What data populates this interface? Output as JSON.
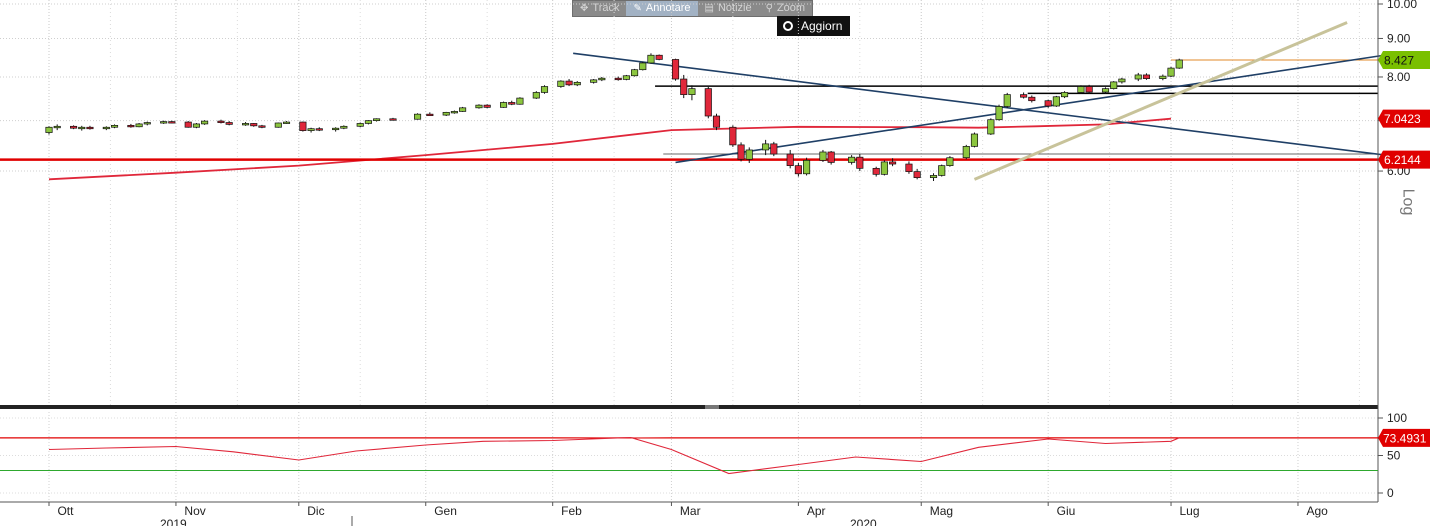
{
  "toolbar": {
    "buttons": [
      {
        "label": "Track",
        "icon": "crosshair-icon",
        "glyph": "✥"
      },
      {
        "label": "Annotare",
        "icon": "pencil-icon",
        "glyph": "✎"
      },
      {
        "label": "Notizie",
        "icon": "news-icon",
        "glyph": "▤"
      },
      {
        "label": "Zoom",
        "icon": "magnifier-icon",
        "glyph": "⚲"
      }
    ],
    "active_index": 1,
    "update_label": "Aggiorn"
  },
  "log_label": "Log",
  "colors": {
    "up": "#8cc63f",
    "down": "#e0273a",
    "moving_average": "#e0273a",
    "support_line": "#e00000",
    "trend_blue": "#1f3f66",
    "trend_tan": "#c8c39a",
    "flat_black": "#000000",
    "last_price_marker": "#7ac000",
    "indicator_line": "#e0273a",
    "indicator_fill": "#f5b2b8",
    "overbought_line": "#e00000",
    "oversold_line": "#2ea82e"
  },
  "chart_data": [
    {
      "type": "candlestick",
      "title": "",
      "yscale": "log",
      "ylim": [
        5.8,
        10.0
      ],
      "yticks": [
        "10.00",
        "9.00",
        "8.00",
        "7.00",
        "6.00"
      ],
      "xticks": [
        "Ott",
        "Nov",
        "Dic",
        "Gen",
        "Feb",
        "Mar",
        "Apr",
        "Mag",
        "Giu",
        "Lug",
        "Ago"
      ],
      "year_labels": [
        "2019",
        "2020"
      ],
      "price_labels": [
        {
          "value": 8.427,
          "text": "8.427",
          "style": "last"
        },
        {
          "value": 7.0423,
          "text": "7.0423",
          "style": "ma"
        },
        {
          "value": 6.2144,
          "text": "6.2144",
          "style": "support"
        }
      ],
      "horizontal_levels": [
        {
          "value": 6.2144,
          "from": "Ott",
          "to": "end",
          "style": "support"
        },
        {
          "value": 7.78,
          "from": "Feb 26",
          "to": "end",
          "style": "black"
        },
        {
          "value": 7.61,
          "from": "May 27",
          "to": "end",
          "style": "black"
        },
        {
          "value": 6.32,
          "from": "Feb 28",
          "to": "end",
          "style": "grey"
        },
        {
          "value": 8.427,
          "from": "Jul 1",
          "to": "end",
          "style": "last"
        }
      ],
      "trend_lines": [
        {
          "from": [
            "Feb 6",
            8.6
          ],
          "to": [
            "Aug 31",
            6.2144
          ],
          "style": "blue"
        },
        {
          "from": [
            "Mar 2",
            6.16
          ],
          "to": [
            "Aug 22",
            8.55
          ],
          "style": "blue"
        },
        {
          "from": [
            "May 14",
            5.85
          ],
          "to": [
            "Aug 13",
            9.45
          ],
          "style": "tan"
        }
      ],
      "moving_average": [
        [
          "Oct 1",
          5.85
        ],
        [
          "Nov 1",
          5.97
        ],
        [
          "Dec 1",
          6.1
        ],
        [
          "Jan 1",
          6.3
        ],
        [
          "Feb 1",
          6.52
        ],
        [
          "Mar 1",
          6.8
        ],
        [
          "Apr 1",
          6.87
        ],
        [
          "May 1",
          6.86
        ],
        [
          "May 15",
          6.85
        ],
        [
          "May 29",
          6.88
        ],
        [
          "Jun 15",
          6.92
        ],
        [
          "Jul 1",
          7.0423
        ]
      ],
      "candles": [
        [
          "Oct 1",
          6.75,
          6.88,
          6.71,
          6.86
        ],
        [
          "Oct 3",
          6.86,
          6.92,
          6.8,
          6.88
        ],
        [
          "Oct 7",
          6.88,
          6.9,
          6.82,
          6.84
        ],
        [
          "Oct 9",
          6.84,
          6.89,
          6.79,
          6.86
        ],
        [
          "Oct 11",
          6.86,
          6.89,
          6.81,
          6.83
        ],
        [
          "Oct 15",
          6.83,
          6.88,
          6.8,
          6.86
        ],
        [
          "Oct 17",
          6.86,
          6.92,
          6.84,
          6.9
        ],
        [
          "Oct 21",
          6.9,
          6.93,
          6.85,
          6.87
        ],
        [
          "Oct 23",
          6.87,
          6.95,
          6.86,
          6.93
        ],
        [
          "Oct 25",
          6.93,
          6.98,
          6.9,
          6.96
        ],
        [
          "Oct 29",
          6.96,
          7.0,
          6.93,
          6.98
        ],
        [
          "Oct 31",
          6.98,
          7.0,
          6.94,
          6.97
        ],
        [
          "Nov 4",
          6.97,
          6.99,
          6.85,
          6.86
        ],
        [
          "Nov 6",
          6.86,
          6.95,
          6.84,
          6.93
        ],
        [
          "Nov 8",
          6.93,
          7.01,
          6.91,
          6.99
        ],
        [
          "Nov 12",
          6.99,
          7.02,
          6.94,
          6.96
        ],
        [
          "Nov 14",
          6.96,
          6.99,
          6.9,
          6.92
        ],
        [
          "Nov 18",
          6.92,
          6.97,
          6.89,
          6.94
        ],
        [
          "Nov 20",
          6.94,
          6.95,
          6.87,
          6.89
        ],
        [
          "Nov 22",
          6.89,
          6.91,
          6.84,
          6.86
        ],
        [
          "Nov 26",
          6.86,
          6.96,
          6.85,
          6.95
        ],
        [
          "Nov 28",
          6.95,
          6.99,
          6.93,
          6.97
        ],
        [
          "Dec 2",
          6.97,
          6.98,
          6.77,
          6.79
        ],
        [
          "Dec 4",
          6.79,
          6.85,
          6.75,
          6.83
        ],
        [
          "Dec 6",
          6.83,
          6.86,
          6.78,
          6.81
        ],
        [
          "Dec 10",
          6.81,
          6.86,
          6.77,
          6.84
        ],
        [
          "Dec 12",
          6.84,
          6.9,
          6.82,
          6.88
        ],
        [
          "Dec 16",
          6.88,
          6.96,
          6.86,
          6.94
        ],
        [
          "Dec 18",
          6.94,
          7.01,
          6.92,
          7.0
        ],
        [
          "Dec 20",
          7.0,
          7.05,
          6.98,
          7.04
        ],
        [
          "Dec 24",
          7.04,
          7.06,
          7.01,
          7.03
        ],
        [
          "Dec 30",
          7.03,
          7.16,
          7.02,
          7.14
        ],
        [
          "Jan 2",
          7.14,
          7.18,
          7.1,
          7.12
        ],
        [
          "Jan 6",
          7.12,
          7.19,
          7.1,
          7.18
        ],
        [
          "Jan 8",
          7.18,
          7.22,
          7.15,
          7.2
        ],
        [
          "Jan 10",
          7.2,
          7.3,
          7.19,
          7.28
        ],
        [
          "Jan 14",
          7.28,
          7.36,
          7.26,
          7.34
        ],
        [
          "Jan 16",
          7.34,
          7.36,
          7.27,
          7.29
        ],
        [
          "Jan 20",
          7.29,
          7.42,
          7.28,
          7.4
        ],
        [
          "Jan 22",
          7.4,
          7.44,
          7.34,
          7.36
        ],
        [
          "Jan 24",
          7.36,
          7.52,
          7.35,
          7.5
        ],
        [
          "Jan 28",
          7.5,
          7.66,
          7.48,
          7.63
        ],
        [
          "Jan 30",
          7.63,
          7.8,
          7.6,
          7.77
        ],
        [
          "Feb 3",
          7.77,
          7.92,
          7.74,
          7.9
        ],
        [
          "Feb 5",
          7.9,
          7.95,
          7.78,
          7.81
        ],
        [
          "Feb 7",
          7.81,
          7.9,
          7.78,
          7.87
        ],
        [
          "Feb 11",
          7.87,
          7.95,
          7.84,
          7.93
        ],
        [
          "Feb 13",
          7.93,
          8.0,
          7.9,
          7.97
        ],
        [
          "Feb 17",
          7.97,
          8.01,
          7.91,
          7.94
        ],
        [
          "Feb 19",
          7.94,
          8.05,
          7.92,
          8.03
        ],
        [
          "Feb 21",
          8.03,
          8.2,
          8.01,
          8.18
        ],
        [
          "Feb 23",
          8.18,
          8.38,
          8.16,
          8.35
        ],
        [
          "Feb 25",
          8.35,
          8.6,
          8.33,
          8.55
        ],
        [
          "Feb 27",
          8.55,
          8.57,
          8.42,
          8.44
        ],
        [
          "Mar 2",
          8.44,
          8.46,
          7.91,
          7.95
        ],
        [
          "Mar 4",
          7.95,
          8.05,
          7.5,
          7.58
        ],
        [
          "Mar 6",
          7.58,
          7.8,
          7.45,
          7.72
        ],
        [
          "Mar 10",
          7.72,
          7.76,
          7.05,
          7.1
        ],
        [
          "Mar 12",
          7.1,
          7.15,
          6.8,
          6.86
        ],
        [
          "Mar 16",
          6.86,
          6.9,
          6.46,
          6.5
        ],
        [
          "Mar 18",
          6.5,
          6.55,
          6.18,
          6.22
        ],
        [
          "Mar 20",
          6.22,
          6.45,
          6.15,
          6.4
        ],
        [
          "Mar 24",
          6.4,
          6.6,
          6.3,
          6.52
        ],
        [
          "Mar 26",
          6.52,
          6.56,
          6.28,
          6.32
        ],
        [
          "Mar 30",
          6.32,
          6.4,
          6.05,
          6.1
        ],
        [
          "Apr 1",
          6.1,
          6.15,
          5.9,
          5.95
        ],
        [
          "Apr 3",
          5.95,
          6.25,
          5.92,
          6.2
        ],
        [
          "Apr 7",
          6.2,
          6.4,
          6.17,
          6.36
        ],
        [
          "Apr 9",
          6.36,
          6.38,
          6.12,
          6.16
        ],
        [
          "Apr 14",
          6.16,
          6.3,
          6.12,
          6.26
        ],
        [
          "Apr 16",
          6.26,
          6.32,
          6.0,
          6.05
        ],
        [
          "Apr 20",
          6.05,
          6.08,
          5.9,
          5.94
        ],
        [
          "Apr 22",
          5.94,
          6.2,
          5.92,
          6.17
        ],
        [
          "Apr 24",
          6.17,
          6.24,
          6.09,
          6.13
        ],
        [
          "Apr 28",
          6.13,
          6.18,
          5.95,
          5.99
        ],
        [
          "Apr 30",
          5.99,
          6.04,
          5.85,
          5.88
        ],
        [
          "May 4",
          5.88,
          5.96,
          5.82,
          5.92
        ],
        [
          "May 6",
          5.92,
          6.12,
          5.9,
          6.1
        ],
        [
          "May 8",
          6.1,
          6.28,
          6.08,
          6.25
        ],
        [
          "May 12",
          6.25,
          6.5,
          6.22,
          6.47
        ],
        [
          "May 14",
          6.47,
          6.75,
          6.45,
          6.72
        ],
        [
          "May 18",
          6.72,
          7.05,
          6.7,
          7.02
        ],
        [
          "May 20",
          7.02,
          7.35,
          7.0,
          7.31
        ],
        [
          "May 22",
          7.31,
          7.62,
          7.28,
          7.58
        ],
        [
          "May 26",
          7.58,
          7.63,
          7.49,
          7.52
        ],
        [
          "May 28",
          7.52,
          7.56,
          7.4,
          7.44
        ],
        [
          "Jun 1",
          7.44,
          7.46,
          7.28,
          7.32
        ],
        [
          "Jun 3",
          7.32,
          7.55,
          7.3,
          7.53
        ],
        [
          "Jun 5",
          7.53,
          7.66,
          7.5,
          7.63
        ],
        [
          "Jun 9",
          7.63,
          7.8,
          7.6,
          7.77
        ],
        [
          "Jun 11",
          7.77,
          7.81,
          7.6,
          7.64
        ],
        [
          "Jun 15",
          7.64,
          7.75,
          7.6,
          7.72
        ],
        [
          "Jun 17",
          7.72,
          7.9,
          7.7,
          7.88
        ],
        [
          "Jun 19",
          7.88,
          7.98,
          7.84,
          7.95
        ],
        [
          "Jun 23",
          7.95,
          8.1,
          7.9,
          8.05
        ],
        [
          "Jun 25",
          8.05,
          8.09,
          7.93,
          7.96
        ],
        [
          "Jun 29",
          7.96,
          8.06,
          7.92,
          8.02
        ],
        [
          "Jul 1",
          8.02,
          8.25,
          8.0,
          8.22
        ],
        [
          "Jul 3",
          8.22,
          8.46,
          8.2,
          8.427
        ]
      ]
    },
    {
      "type": "line",
      "title": "",
      "ylim": [
        0,
        100
      ],
      "yticks": [
        "100",
        "50",
        "0"
      ],
      "last_value": "73.4931",
      "overbought": 73.4931,
      "oversold": 30,
      "values": [
        [
          "Oct 1",
          58
        ],
        [
          "Oct 15",
          60
        ],
        [
          "Nov 1",
          62
        ],
        [
          "Nov 15",
          55
        ],
        [
          "Dec 1",
          44
        ],
        [
          "Dec 15",
          56
        ],
        [
          "Jan 1",
          64
        ],
        [
          "Jan 15",
          69
        ],
        [
          "Feb 1",
          70
        ],
        [
          "Feb 20",
          74
        ],
        [
          "Mar 1",
          58
        ],
        [
          "Mar 15",
          26
        ],
        [
          "Apr 1",
          38
        ],
        [
          "Apr 15",
          48
        ],
        [
          "May 1",
          42
        ],
        [
          "May 15",
          61
        ],
        [
          "Jun 1",
          72
        ],
        [
          "Jun 15",
          66
        ],
        [
          "Jul 1",
          69
        ],
        [
          "Jul 3",
          73.4931
        ]
      ]
    }
  ]
}
